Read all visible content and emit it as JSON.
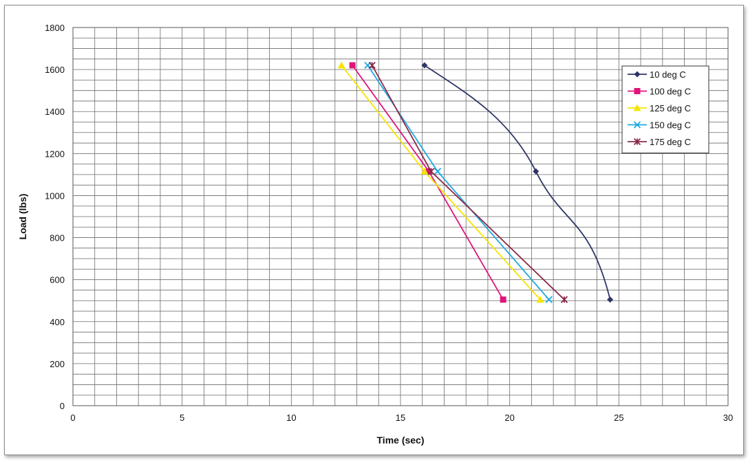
{
  "chart_data": {
    "type": "line",
    "title": "",
    "xlabel": "Time (sec)",
    "ylabel": "Load (lbs)",
    "xlim": [
      0,
      30
    ],
    "ylim": [
      0,
      1800
    ],
    "x_ticks": [
      "0",
      "5",
      "10",
      "15",
      "20",
      "25",
      "30"
    ],
    "y_ticks": [
      "0",
      "200",
      "400",
      "600",
      "800",
      "1000",
      "1200",
      "1400",
      "1600",
      "1800"
    ],
    "grid": true,
    "legend_position": "top-right",
    "series": [
      {
        "name": "10 deg C",
        "color": "#2e3566",
        "marker": "diamond",
        "points": [
          [
            16.1,
            1620
          ],
          [
            21.2,
            1115
          ],
          [
            24.6,
            505
          ]
        ]
      },
      {
        "name": "100 deg C",
        "color": "#e0147a",
        "marker": "square",
        "points": [
          [
            12.8,
            1620
          ],
          [
            16.3,
            1115
          ],
          [
            19.7,
            505
          ]
        ]
      },
      {
        "name": "125 deg C",
        "color": "#f5e400",
        "marker": "triangle",
        "points": [
          [
            12.3,
            1620
          ],
          [
            16.1,
            1115
          ],
          [
            21.4,
            505
          ]
        ]
      },
      {
        "name": "150 deg C",
        "color": "#1ea8e0",
        "marker": "x",
        "points": [
          [
            13.5,
            1620
          ],
          [
            16.7,
            1115
          ],
          [
            21.8,
            505
          ]
        ]
      },
      {
        "name": "175 deg C",
        "color": "#8a2a4a",
        "marker": "star",
        "points": [
          [
            13.7,
            1620
          ],
          [
            16.4,
            1115
          ],
          [
            22.5,
            505
          ]
        ]
      }
    ]
  }
}
